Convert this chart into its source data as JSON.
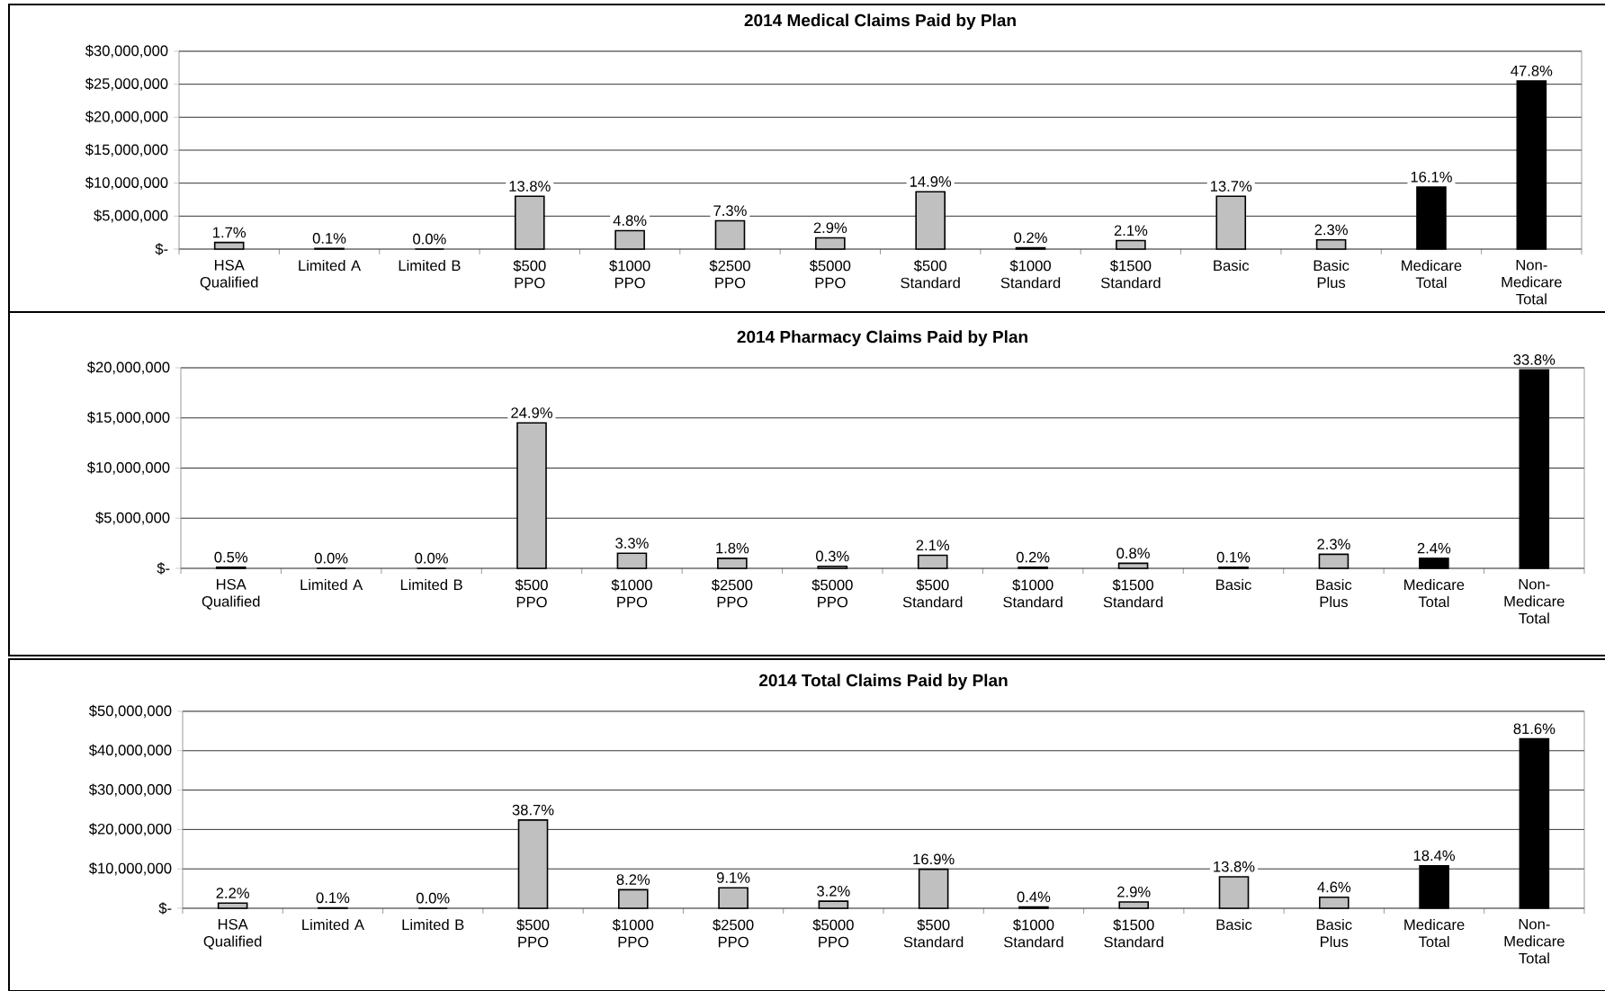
{
  "chart_data": [
    {
      "type": "bar",
      "title": "2014 Medical Claims Paid by Plan",
      "categories": [
        "HSA Qualified",
        "Limited A",
        "Limited B",
        "$500 PPO",
        "$1000 PPO",
        "$2500 PPO",
        "$5000 PPO",
        "$500 Standard",
        "$1000 Standard",
        "$1500 Standard",
        "Basic",
        "Basic Plus",
        "Medicare Total",
        "Non-Medicare Total"
      ],
      "values": [
        1000000,
        100000,
        0,
        8000000,
        2800000,
        4300000,
        1700000,
        8700000,
        200000,
        1300000,
        8000000,
        1400000,
        9400000,
        25500000
      ],
      "colors": [
        "#c0c0c0",
        "#c0c0c0",
        "#c0c0c0",
        "#c0c0c0",
        "#c0c0c0",
        "#c0c0c0",
        "#c0c0c0",
        "#c0c0c0",
        "#c0c0c0",
        "#c0c0c0",
        "#c0c0c0",
        "#c0c0c0",
        "#000000",
        "#000000"
      ],
      "annotations": [
        {
          "text": "1.7%",
          "x": "HSA Qualified",
          "y": 1000000
        },
        {
          "text": "0.1%",
          "x": "Limited A",
          "y": 100000
        },
        {
          "text": "0.0%",
          "x": "Limited B",
          "y": 0
        },
        {
          "text": "13.8%",
          "x": "$500 PPO",
          "y": 8000000
        },
        {
          "text": "4.8%",
          "x": "$1000 PPO",
          "y": 2800000
        },
        {
          "text": "7.3%",
          "x": "$2500 PPO",
          "y": 4300000
        },
        {
          "text": "2.9%",
          "x": "$5000 PPO",
          "y": 1700000
        },
        {
          "text": "14.9%",
          "x": "$500 Standard",
          "y": 8700000
        },
        {
          "text": "0.2%",
          "x": "$1000 Standard",
          "y": 200000
        },
        {
          "text": "2.1%",
          "x": "$1500 Standard",
          "y": 1300000
        },
        {
          "text": "13.7%",
          "x": "Basic",
          "y": 8000000
        },
        {
          "text": "2.3%",
          "x": "Basic Plus",
          "y": 1400000
        },
        {
          "text": "16.1%",
          "x": "Medicare Total",
          "y": 9400000
        },
        {
          "text": "47.8%",
          "x": "Non-Medicare Total",
          "y": 25500000
        }
      ],
      "ylim": [
        0,
        30000000
      ],
      "yticks": [
        {
          "value": 0,
          "label": "$-"
        },
        {
          "value": 5000000,
          "label": "$5,000,000"
        },
        {
          "value": 10000000,
          "label": "$10,000,000"
        },
        {
          "value": 15000000,
          "label": "$15,000,000"
        },
        {
          "value": 20000000,
          "label": "$20,000,000"
        },
        {
          "value": 25000000,
          "label": "$25,000,000"
        },
        {
          "value": 30000000,
          "label": "$30,000,000"
        }
      ],
      "grid": "y"
    },
    {
      "type": "bar",
      "title": "2014 Pharmacy Claims Paid by Plan",
      "categories": [
        "HSA Qualified",
        "Limited A",
        "Limited B",
        "$500 PPO",
        "$1000 PPO",
        "$2500 PPO",
        "$5000 PPO",
        "$500 Standard",
        "$1000 Standard",
        "$1500 Standard",
        "Basic",
        "Basic Plus",
        "Medicare Total",
        "Non-Medicare Total"
      ],
      "values": [
        100000,
        0,
        0,
        14500000,
        1500000,
        1000000,
        200000,
        1300000,
        100000,
        500000,
        100000,
        1400000,
        1000000,
        19800000
      ],
      "colors": [
        "#c0c0c0",
        "#c0c0c0",
        "#c0c0c0",
        "#c0c0c0",
        "#c0c0c0",
        "#c0c0c0",
        "#c0c0c0",
        "#c0c0c0",
        "#c0c0c0",
        "#c0c0c0",
        "#c0c0c0",
        "#c0c0c0",
        "#000000",
        "#000000"
      ],
      "annotations": [
        {
          "text": "0.5%",
          "x": "HSA Qualified",
          "y": 100000
        },
        {
          "text": "0.0%",
          "x": "Limited A",
          "y": 0
        },
        {
          "text": "0.0%",
          "x": "Limited B",
          "y": 0
        },
        {
          "text": "24.9%",
          "x": "$500 PPO",
          "y": 14500000
        },
        {
          "text": "3.3%",
          "x": "$1000 PPO",
          "y": 1500000
        },
        {
          "text": "1.8%",
          "x": "$2500 PPO",
          "y": 1000000
        },
        {
          "text": "0.3%",
          "x": "$5000 PPO",
          "y": 200000
        },
        {
          "text": "2.1%",
          "x": "$500 Standard",
          "y": 1300000
        },
        {
          "text": "0.2%",
          "x": "$1000 Standard",
          "y": 100000
        },
        {
          "text": "0.8%",
          "x": "$1500 Standard",
          "y": 500000
        },
        {
          "text": "0.1%",
          "x": "Basic",
          "y": 100000
        },
        {
          "text": "2.3%",
          "x": "Basic Plus",
          "y": 1400000
        },
        {
          "text": "2.4%",
          "x": "Medicare Total",
          "y": 1000000
        },
        {
          "text": "33.8%",
          "x": "Non-Medicare Total",
          "y": 19800000
        }
      ],
      "ylim": [
        0,
        20000000
      ],
      "yticks": [
        {
          "value": 0,
          "label": "$-"
        },
        {
          "value": 5000000,
          "label": "$5,000,000"
        },
        {
          "value": 10000000,
          "label": "$10,000,000"
        },
        {
          "value": 15000000,
          "label": "$15,000,000"
        },
        {
          "value": 20000000,
          "label": "$20,000,000"
        }
      ],
      "grid": "y"
    },
    {
      "type": "bar",
      "title": "2014 Total Claims Paid by Plan",
      "categories": [
        "HSA Qualified",
        "Limited A",
        "Limited B",
        "$500 PPO",
        "$1000 PPO",
        "$2500 PPO",
        "$5000 PPO",
        "$500 Standard",
        "$1000 Standard",
        "$1500 Standard",
        "Basic",
        "Basic Plus",
        "Medicare Total",
        "Non-Medicare Total"
      ],
      "values": [
        1300000,
        100000,
        0,
        22400000,
        4700000,
        5200000,
        1800000,
        9900000,
        300000,
        1600000,
        8000000,
        2800000,
        10800000,
        43000000
      ],
      "colors": [
        "#c0c0c0",
        "#c0c0c0",
        "#c0c0c0",
        "#c0c0c0",
        "#c0c0c0",
        "#c0c0c0",
        "#c0c0c0",
        "#c0c0c0",
        "#c0c0c0",
        "#c0c0c0",
        "#c0c0c0",
        "#c0c0c0",
        "#000000",
        "#000000"
      ],
      "annotations": [
        {
          "text": "2.2%",
          "x": "HSA Qualified",
          "y": 1300000
        },
        {
          "text": "0.1%",
          "x": "Limited A",
          "y": 100000
        },
        {
          "text": "0.0%",
          "x": "Limited B",
          "y": 0
        },
        {
          "text": "38.7%",
          "x": "$500 PPO",
          "y": 22400000
        },
        {
          "text": "8.2%",
          "x": "$1000 PPO",
          "y": 4700000
        },
        {
          "text": "9.1%",
          "x": "$2500 PPO",
          "y": 5200000
        },
        {
          "text": "3.2%",
          "x": "$5000 PPO",
          "y": 1800000
        },
        {
          "text": "16.9%",
          "x": "$500 Standard",
          "y": 9900000
        },
        {
          "text": "0.4%",
          "x": "$1000 Standard",
          "y": 300000
        },
        {
          "text": "2.9%",
          "x": "$1500 Standard",
          "y": 1600000
        },
        {
          "text": "13.8%",
          "x": "Basic",
          "y": 8000000
        },
        {
          "text": "4.6%",
          "x": "Basic Plus",
          "y": 2800000
        },
        {
          "text": "18.4%",
          "x": "Medicare Total",
          "y": 10800000
        },
        {
          "text": "81.6%",
          "x": "Non-Medicare Total",
          "y": 43000000
        }
      ],
      "ylim": [
        0,
        50000000
      ],
      "yticks": [
        {
          "value": 0,
          "label": "$-"
        },
        {
          "value": 10000000,
          "label": "$10,000,000"
        },
        {
          "value": 20000000,
          "label": "$20,000,000"
        },
        {
          "value": 30000000,
          "label": "$30,000,000"
        },
        {
          "value": 40000000,
          "label": "$40,000,000"
        },
        {
          "value": 50000000,
          "label": "$50,000,000"
        }
      ],
      "grid": "y"
    }
  ]
}
